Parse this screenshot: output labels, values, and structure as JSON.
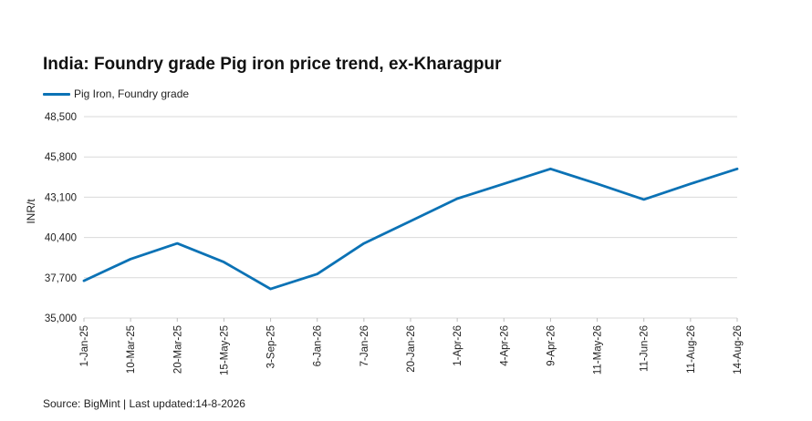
{
  "chart_data": {
    "type": "line",
    "title": "India: Foundry grade Pig iron price trend, ex-Kharagpur",
    "ylabel": "INR/t",
    "xlabel": "",
    "ylim": [
      35000,
      48500
    ],
    "yticks": [
      35000,
      37700,
      40400,
      43100,
      45800,
      48500
    ],
    "ytick_labels": [
      "35,000",
      "37,700",
      "40,400",
      "43,100",
      "45,800",
      "48,500"
    ],
    "categories": [
      "1-Jan-25",
      "10-Mar-25",
      "20-Mar-25",
      "15-May-25",
      "3-Sep-25",
      "6-Jan-26",
      "7-Jan-26",
      "20-Jan-26",
      "1-Apr-26",
      "4-Apr-26",
      "9-Apr-26",
      "11-May-26",
      "11-Jun-26",
      "11-Aug-26",
      "14-Aug-26"
    ],
    "series": [
      {
        "name": "Pig Iron, Foundry grade",
        "color": "#0b72b5",
        "values": [
          37500,
          38950,
          40000,
          38750,
          36950,
          37950,
          40000,
          41500,
          43000,
          44000,
          45000,
          44000,
          42950,
          44000,
          45000
        ]
      }
    ],
    "grid": true,
    "legend": "top-left"
  },
  "footer": {
    "source": "Source: BigMint | Last updated:14-8-2026"
  }
}
